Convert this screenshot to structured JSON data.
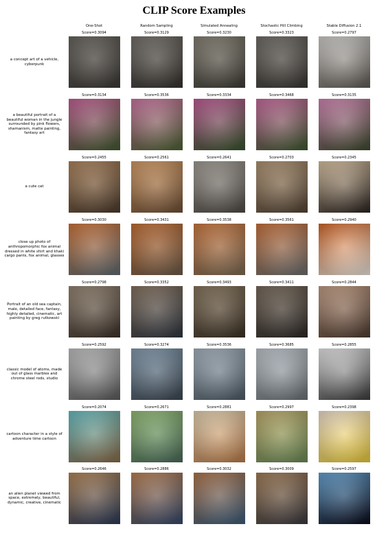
{
  "title": "CLIP Score Examples",
  "columns": [
    "One-Shot",
    "Random Sampling",
    "Simulated Annealing",
    "Stochastic Hill Climbing",
    "Stable Diffusion 2.1"
  ],
  "rows": [
    {
      "prompt": "a concept art of a vehicle, cyberpunk",
      "scores": [
        "Score=0.3094",
        "Score=0.3129",
        "Score=0.3230",
        "Score=0.3323",
        "Score=0.2797"
      ],
      "colors": [
        [
          "#6e6a64",
          "#3b3834"
        ],
        [
          "#7a756f",
          "#34312d"
        ],
        [
          "#8a8578",
          "#3f3c36"
        ],
        [
          "#77736d",
          "#3a3733"
        ],
        [
          "#d8d6d2",
          "#5d5852"
        ]
      ]
    },
    {
      "prompt": "a beautiful portrait of a beautiful woman in the jungle surrounded by pink flowers, shamanism, matte painting, fantasy art",
      "scores": [
        "Score=0.3134",
        "Score=0.3536",
        "Score=0.3334",
        "Score=0.3468",
        "Score=0.3135"
      ],
      "colors": [
        [
          "#c9659a",
          "#3f5a2e"
        ],
        [
          "#d27aa8",
          "#4b6232"
        ],
        [
          "#c5609b",
          "#35552c"
        ],
        [
          "#cf6fa3",
          "#3d5a30"
        ],
        [
          "#d88ab8",
          "#3b4a2c"
        ]
      ]
    },
    {
      "prompt": "a cute cat",
      "scores": [
        "Score=0.2455",
        "Score=0.2561",
        "Score=0.2641",
        "Score=0.2703",
        "Score=0.2345"
      ],
      "colors": [
        [
          "#b38a62",
          "#4a3a2c"
        ],
        [
          "#d8a06a",
          "#6d4f36"
        ],
        [
          "#a8a29a",
          "#4e4a45"
        ],
        [
          "#b69a78",
          "#524335"
        ],
        [
          "#e0c8a8",
          "#2a2420"
        ]
      ]
    },
    {
      "prompt": "close up photo of anthropomorphic fox animal dressed in white shirt and khaki cargo pants, fox animal, glasses",
      "scores": [
        "Score=0.3030",
        "Score=0.3431",
        "Score=0.3538",
        "Score=0.3561",
        "Score=0.2940"
      ],
      "colors": [
        [
          "#d2783c",
          "#5e6b72"
        ],
        [
          "#c8743a",
          "#6b5a48"
        ],
        [
          "#cf7c44",
          "#7a6a55"
        ],
        [
          "#cc7640",
          "#6a6e70"
        ],
        [
          "#d46a2c",
          "#e8e4dc"
        ]
      ]
    },
    {
      "prompt": "Portrait of an old sea captain, male, detailed face, fantasy, highly detailed, cinematic, art painting by greg rutkowski",
      "scores": [
        "Score=0.2798",
        "Score=0.3352",
        "Score=0.3493",
        "Score=0.3411",
        "Score=0.2844"
      ],
      "colors": [
        [
          "#9b8a78",
          "#3a3028"
        ],
        [
          "#8a7764",
          "#2f3640"
        ],
        [
          "#8c7a62",
          "#3b3226"
        ],
        [
          "#7d6e5e",
          "#2c2a28"
        ],
        [
          "#c9a48a",
          "#4c3a30"
        ]
      ]
    },
    {
      "prompt": "classic model of atoms, made out of glass marbles and chrome steel rods, studio",
      "scores": [
        "Score=0.2592",
        "Score=0.3274",
        "Score=0.3536",
        "Score=0.3685",
        "Score=0.2855"
      ],
      "colors": [
        [
          "#c8c8c8",
          "#5a5a5a"
        ],
        [
          "#8aa0b4",
          "#3c4650"
        ],
        [
          "#aab8c4",
          "#4e5a64"
        ],
        [
          "#c4ccd2",
          "#6a7076"
        ],
        [
          "#f0f0f0",
          "#3a3a3a"
        ]
      ]
    },
    {
      "prompt": "cartoon character in a style of adventure time cartoon",
      "scores": [
        "Score=0.2074",
        "Score=0.2671",
        "Score=0.2881",
        "Score=0.2997",
        "Score=0.2398"
      ],
      "colors": [
        [
          "#6cc4c8",
          "#8a6a48"
        ],
        [
          "#9ac27a",
          "#4a6a5a"
        ],
        [
          "#e8d8b8",
          "#b87a4a"
        ],
        [
          "#c4b070",
          "#6a8a58"
        ],
        [
          "#f4e4d4",
          "#e6c838"
        ]
      ]
    },
    {
      "prompt": "an alien planet viewed from space, extremely, beautiful, dynamic, creative, cinematic",
      "scores": [
        "Score=0.2646",
        "Score=0.2886",
        "Score=0.3032",
        "Score=0.3009",
        "Score=0.2597"
      ],
      "colors": [
        [
          "#b88a5a",
          "#2a3a58"
        ],
        [
          "#c08658",
          "#34486a"
        ],
        [
          "#b47a50",
          "#3a5c7a"
        ],
        [
          "#a8825c",
          "#3a3a40"
        ],
        [
          "#6aa8d8",
          "#0a0a18"
        ]
      ]
    }
  ]
}
